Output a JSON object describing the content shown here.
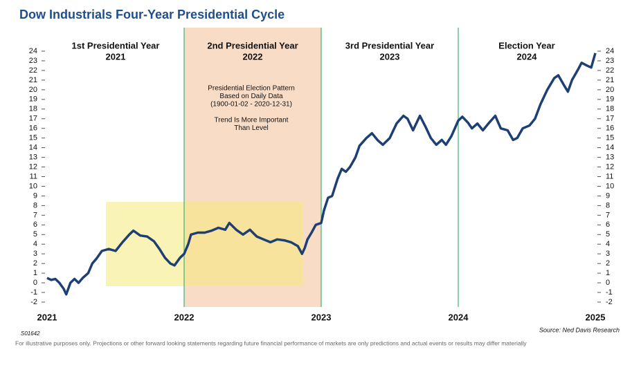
{
  "chart_data": {
    "type": "line",
    "title": "Dow Industrials Four-Year Presidential Cycle",
    "period_labels": [
      {
        "title": "1st Presidential Year",
        "year": "2021"
      },
      {
        "title": "2nd Presidential Year",
        "year": "2022"
      },
      {
        "title": "3rd Presidential Year",
        "year": "2023"
      },
      {
        "title": "Election Year",
        "year": "2024"
      }
    ],
    "annotation": [
      "Presidential Election Pattern",
      "Based on Daily Data",
      "(1900-01-02 - 2020-12-31)",
      "",
      "Trend Is More Important",
      "Than Level"
    ],
    "code": "S01642",
    "source": "Source: Ned Davis Research",
    "footnote": "For illustrative purposes only. Projections or other forward looking statements regarding future financial performance of markets are only predictions and actual events or results may differ materially",
    "xlim": [
      2021,
      2025
    ],
    "xticks": [
      2021,
      2022,
      2023,
      2024,
      2025
    ],
    "ylim": [
      -2,
      24
    ],
    "yticks": [
      -2,
      -1,
      0,
      1,
      2,
      3,
      4,
      5,
      6,
      7,
      8,
      9,
      10,
      11,
      12,
      13,
      14,
      15,
      16,
      17,
      18,
      19,
      20,
      21,
      22,
      23,
      24
    ],
    "x": [
      2021.0,
      2021.03,
      2021.06,
      2021.09,
      2021.12,
      2021.14,
      2021.17,
      2021.2,
      2021.23,
      2021.26,
      2021.3,
      2021.33,
      2021.36,
      2021.4,
      2021.45,
      2021.5,
      2021.55,
      2021.6,
      2021.63,
      2021.68,
      2021.73,
      2021.78,
      2021.82,
      2021.86,
      2021.9,
      2021.93,
      2021.97,
      2022.0,
      2022.03,
      2022.05,
      2022.1,
      2022.15,
      2022.2,
      2022.25,
      2022.3,
      2022.33,
      2022.38,
      2022.43,
      2022.48,
      2022.53,
      2022.58,
      2022.63,
      2022.68,
      2022.73,
      2022.78,
      2022.83,
      2022.86,
      2022.88,
      2022.9,
      2022.93,
      2022.96,
      2023.0,
      2023.02,
      2023.05,
      2023.08,
      2023.12,
      2023.15,
      2023.18,
      2023.21,
      2023.25,
      2023.28,
      2023.33,
      2023.37,
      2023.41,
      2023.45,
      2023.5,
      2023.55,
      2023.6,
      2023.63,
      2023.67,
      2023.72,
      2023.76,
      2023.8,
      2023.84,
      2023.88,
      2023.91,
      2023.95,
      2024.0,
      2024.03,
      2024.07,
      2024.1,
      2024.14,
      2024.18,
      2024.22,
      2024.27,
      2024.31,
      2024.36,
      2024.4,
      2024.43,
      2024.47,
      2024.52,
      2024.56,
      2024.6,
      2024.65,
      2024.7,
      2024.73,
      2024.77,
      2024.8,
      2024.83,
      2024.87,
      2024.9,
      2024.94,
      2024.97,
      2025.0
    ],
    "series": [
      {
        "name": "Dow Industrials",
        "color": "#1d3f73",
        "values": [
          0.5,
          0.3,
          0.4,
          0.0,
          -0.6,
          -1.2,
          0.0,
          0.4,
          0.0,
          0.5,
          1.0,
          2.0,
          2.5,
          3.3,
          3.5,
          3.3,
          4.2,
          5.0,
          5.4,
          4.9,
          4.8,
          4.3,
          3.5,
          2.6,
          2.0,
          1.8,
          2.6,
          3.0,
          4.0,
          5.0,
          5.2,
          5.2,
          5.4,
          5.7,
          5.5,
          6.2,
          5.5,
          5.0,
          5.5,
          4.8,
          4.5,
          4.2,
          4.5,
          4.4,
          4.2,
          3.8,
          3.0,
          3.6,
          4.5,
          5.2,
          6.0,
          6.2,
          7.5,
          8.8,
          9.0,
          10.8,
          11.8,
          11.5,
          12.0,
          13.0,
          14.2,
          15.0,
          15.5,
          14.8,
          14.3,
          15.0,
          16.5,
          17.3,
          17.0,
          15.8,
          17.3,
          16.2,
          15.0,
          14.3,
          14.8,
          14.3,
          15.2,
          16.8,
          17.2,
          16.6,
          16.0,
          16.5,
          15.8,
          16.5,
          17.3,
          16.0,
          15.8,
          14.8,
          15.0,
          16.0,
          16.3,
          17.0,
          18.5,
          20.0,
          21.2,
          21.5,
          20.5,
          19.8,
          21.0,
          22.0,
          22.8,
          22.5,
          22.3,
          23.8
        ]
      }
    ],
    "band_color": "#f8dcc6",
    "year_line_color": "#3cb371"
  }
}
